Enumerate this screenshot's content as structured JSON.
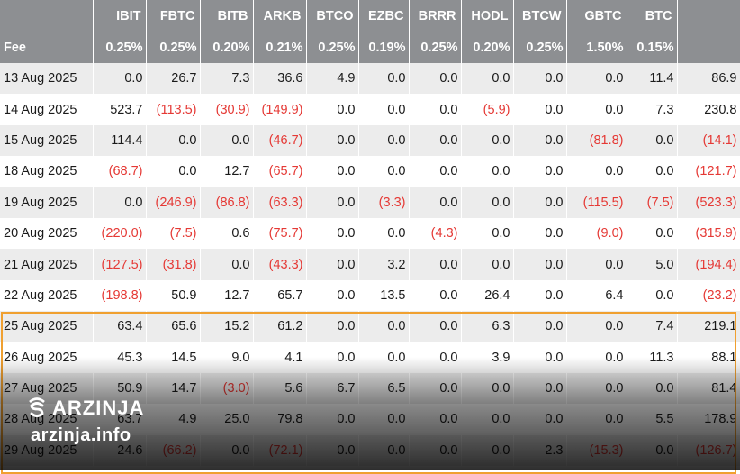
{
  "columns": [
    "IBIT",
    "FBTC",
    "BITB",
    "ARKB",
    "BTCO",
    "EZBC",
    "BRRR",
    "HODL",
    "BTCW",
    "GBTC",
    "BTC",
    ""
  ],
  "fee": {
    "label": "Fee",
    "values": [
      "0.25%",
      "0.25%",
      "0.20%",
      "0.21%",
      "0.25%",
      "0.19%",
      "0.25%",
      "0.20%",
      "0.25%",
      "1.50%",
      "0.15%",
      ""
    ]
  },
  "rows": [
    {
      "date": "13 Aug 2025",
      "values": [
        "0.0",
        "26.7",
        "7.3",
        "36.6",
        "4.9",
        "0.0",
        "0.0",
        "0.0",
        "0.0",
        "0.0",
        "11.4",
        "86.9"
      ]
    },
    {
      "date": "14 Aug 2025",
      "values": [
        "523.7",
        "(113.5)",
        "(30.9)",
        "(149.9)",
        "0.0",
        "0.0",
        "0.0",
        "(5.9)",
        "0.0",
        "0.0",
        "7.3",
        "230.8"
      ]
    },
    {
      "date": "15 Aug 2025",
      "values": [
        "114.4",
        "0.0",
        "0.0",
        "(46.7)",
        "0.0",
        "0.0",
        "0.0",
        "0.0",
        "0.0",
        "(81.8)",
        "0.0",
        "(14.1)"
      ]
    },
    {
      "date": "18 Aug 2025",
      "values": [
        "(68.7)",
        "0.0",
        "12.7",
        "(65.7)",
        "0.0",
        "0.0",
        "0.0",
        "0.0",
        "0.0",
        "0.0",
        "0.0",
        "(121.7)"
      ]
    },
    {
      "date": "19 Aug 2025",
      "values": [
        "0.0",
        "(246.9)",
        "(86.8)",
        "(63.3)",
        "0.0",
        "(3.3)",
        "0.0",
        "0.0",
        "0.0",
        "(115.5)",
        "(7.5)",
        "(523.3)"
      ]
    },
    {
      "date": "20 Aug 2025",
      "values": [
        "(220.0)",
        "(7.5)",
        "0.6",
        "(75.7)",
        "0.0",
        "0.0",
        "(4.3)",
        "0.0",
        "0.0",
        "(9.0)",
        "0.0",
        "(315.9)"
      ]
    },
    {
      "date": "21 Aug 2025",
      "values": [
        "(127.5)",
        "(31.8)",
        "0.0",
        "(43.3)",
        "0.0",
        "3.2",
        "0.0",
        "0.0",
        "0.0",
        "0.0",
        "5.0",
        "(194.4)"
      ]
    },
    {
      "date": "22 Aug 2025",
      "values": [
        "(198.8)",
        "50.9",
        "12.7",
        "65.7",
        "0.0",
        "13.5",
        "0.0",
        "26.4",
        "0.0",
        "6.4",
        "0.0",
        "(23.2)"
      ]
    },
    {
      "date": "25 Aug 2025",
      "values": [
        "63.4",
        "65.6",
        "15.2",
        "61.2",
        "0.0",
        "0.0",
        "0.0",
        "6.3",
        "0.0",
        "0.0",
        "7.4",
        "219.1"
      ]
    },
    {
      "date": "26 Aug 2025",
      "values": [
        "45.3",
        "14.5",
        "9.0",
        "4.1",
        "0.0",
        "0.0",
        "0.0",
        "3.9",
        "0.0",
        "0.0",
        "11.3",
        "88.1"
      ]
    },
    {
      "date": "27 Aug 2025",
      "values": [
        "50.9",
        "14.7",
        "(3.0)",
        "5.6",
        "6.7",
        "6.5",
        "0.0",
        "0.0",
        "0.0",
        "0.0",
        "0.0",
        "81.4"
      ]
    },
    {
      "date": "28 Aug 2025",
      "values": [
        "63.7",
        "4.9",
        "25.0",
        "79.8",
        "0.0",
        "0.0",
        "0.0",
        "0.0",
        "0.0",
        "0.0",
        "5.5",
        "178.9"
      ]
    },
    {
      "date": "29 Aug 2025",
      "values": [
        "24.6",
        "(66.2)",
        "0.0",
        "(72.1)",
        "0.0",
        "0.0",
        "0.0",
        "0.0",
        "2.3",
        "(15.3)",
        "0.0",
        "(126.7)"
      ]
    }
  ],
  "watermark": {
    "brand": "ARZINJA",
    "site": "arzinja.info",
    "icon": "arzinja-logo-icon"
  },
  "colors": {
    "header_bg": "#8d8f92",
    "negative": "#e53935",
    "highlight_border": "#f0a030",
    "row_alt": "#ececec"
  }
}
